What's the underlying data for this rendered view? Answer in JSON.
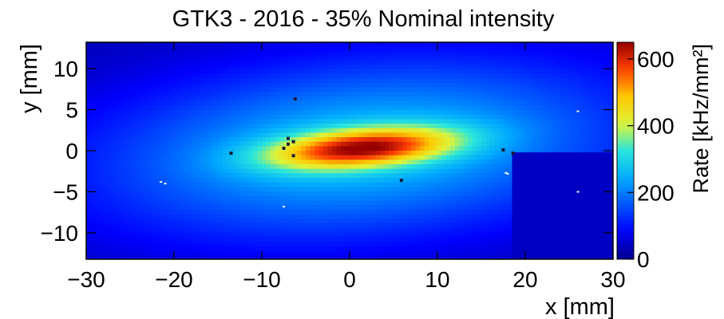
{
  "chart_data": {
    "type": "heatmap",
    "title": "GTK3 - 2016 - 35% Nominal intensity",
    "xlabel": "x [mm]",
    "ylabel": "y [mm]",
    "zlabel": "Rate [kHz/mm²]",
    "xlim": [
      -30,
      30
    ],
    "ylim": [
      -13.2,
      13.2
    ],
    "zlim": [
      0,
      650
    ],
    "x_ticks": [
      -30,
      -20,
      -10,
      0,
      10,
      20,
      30
    ],
    "x_tick_labels": [
      "−30",
      "−20",
      "−10",
      "0",
      "10",
      "20",
      "30"
    ],
    "y_ticks": [
      -10,
      -5,
      0,
      5,
      10
    ],
    "y_tick_labels": [
      "−10",
      "−5",
      "0",
      "5",
      "10"
    ],
    "z_ticks": [
      0,
      200,
      400,
      600
    ],
    "z_tick_labels": [
      "0",
      "200",
      "400",
      "600"
    ],
    "colormap": "jet",
    "beam_spot": {
      "center_x": 1.5,
      "center_y": 0.3,
      "peak_rate": 640,
      "sigma_x_core": 7.5,
      "sigma_y_core": 1.6,
      "sigma_x_halo": 22,
      "sigma_y_halo": 7.5,
      "tilt_deg": 5
    },
    "dim_region": {
      "x": [
        18.5,
        30
      ],
      "y": [
        -13.2,
        -0.2
      ],
      "rate": 40
    },
    "dead_pixels": [
      {
        "x": -7,
        "y": 1.5
      },
      {
        "x": -7,
        "y": 0.8
      },
      {
        "x": -7.5,
        "y": 0.3
      },
      {
        "x": -6.4,
        "y": 1.1
      },
      {
        "x": -6.4,
        "y": -0.6
      },
      {
        "x": -13.5,
        "y": -0.3
      },
      {
        "x": -6.2,
        "y": 6.3
      },
      {
        "x": 5.9,
        "y": -3.6
      },
      {
        "x": 17.5,
        "y": 0.1
      },
      {
        "x": 18.6,
        "y": -0.3
      }
    ],
    "hot_pixels": [
      {
        "x": -21.5,
        "y": -3.8
      },
      {
        "x": -21,
        "y": -4
      },
      {
        "x": -7.5,
        "y": -6.8
      },
      {
        "x": 17.8,
        "y": -2.7
      },
      {
        "x": 18,
        "y": -2.8
      },
      {
        "x": 26,
        "y": 4.8
      },
      {
        "x": 26,
        "y": -5
      }
    ]
  }
}
